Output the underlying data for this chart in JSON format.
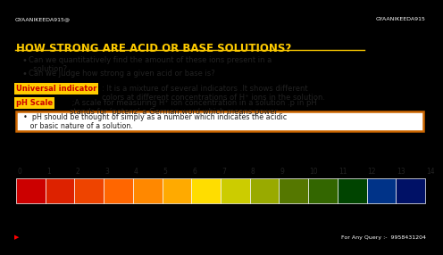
{
  "bg_color": "#000000",
  "slide_bg": "#ffffff",
  "title_text": "HOW STRONG ARE ACID OR BASE SOLUTIONS?",
  "title_color": "#ffcc00",
  "title_underline": true,
  "bullet1": "Can we quantitatively find the amount of these ions present in a\n  solution?",
  "bullet2": "Can we judge how strong a given acid or base is?",
  "ui_label": "Universal indicator",
  "ui_label_color": "#cc0000",
  "ui_label_bg": "#ffcc00",
  "ui_text": ": It is a mixture of several indicators .It shows different\ncolors at different concentrations of H⁺ ions in the solution.",
  "ph_label": "pH Scale",
  "ph_label_color": "#cc0000",
  "ph_label_bg": "#ffcc00",
  "ph_text": " ;A scale for measuring H⁺ ion concentration in a solution .p in pH\nstands for ‘potenz’ a German word which means power .",
  "box_text1": "•  pH should be thought of simply as a number which indicates the acidic",
  "box_text2": "   or basic nature of a solution.",
  "box_border_color": "#cc6600",
  "top_bar_bg": "#1a1a1a",
  "top_bar_left": "GYAANIKEEDA915@",
  "top_bar_right": "GYAANIKEEDA915",
  "bottom_bar_bg": "#1a1a1a",
  "bottom_bar_text": "For Any Query :-  9958431204",
  "ph_colors": [
    "#cc0000",
    "#dd2200",
    "#ee4400",
    "#ff6600",
    "#ff8800",
    "#ffaa00",
    "#ffdd00",
    "#cccc00",
    "#99aa00",
    "#557700",
    "#336600",
    "#004400",
    "#003388",
    "#001166"
  ],
  "ph_ticks": [
    "0",
    "1",
    "2",
    "3",
    "4",
    "5",
    "6",
    "7",
    "8",
    "9",
    "10",
    "11",
    "12",
    "13",
    "14"
  ],
  "text_color": "#222222"
}
